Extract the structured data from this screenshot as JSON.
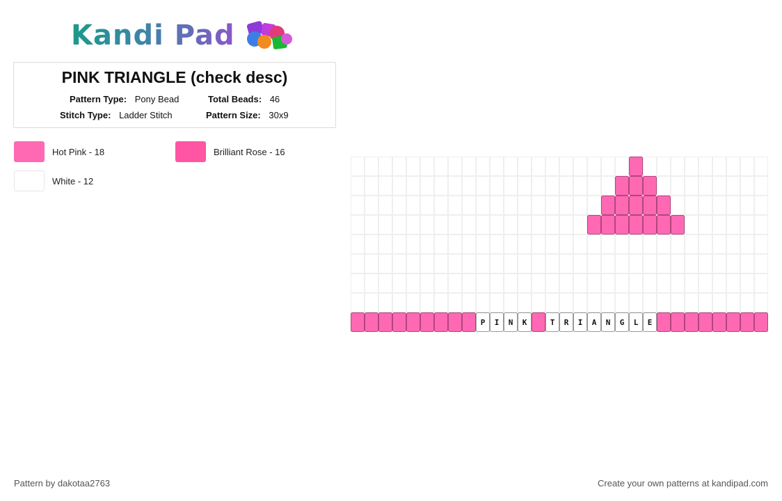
{
  "brand": {
    "logo_text": "Kandi Pad",
    "logo_icon": "bead-cluster-icon"
  },
  "pattern": {
    "title": "PINK TRIANGLE (check desc)",
    "pattern_type_label": "Pattern Type:",
    "pattern_type": "Pony Bead",
    "total_beads_label": "Total Beads:",
    "total_beads": "46",
    "stitch_type_label": "Stitch Type:",
    "stitch_type": "Ladder Stitch",
    "pattern_size_label": "Pattern Size:",
    "pattern_size": "30x9"
  },
  "colors": [
    {
      "name": "Hot Pink - 18",
      "hex": "#ff69b4"
    },
    {
      "name": "Brilliant Rose - 16",
      "hex": "#ff55a3"
    },
    {
      "name": "White - 12",
      "hex": "#ffffff"
    }
  ],
  "grid": {
    "columns": 30,
    "rows": 9,
    "triangle_rows": [
      {
        "row": 0,
        "from_col": 20,
        "to_col": 20
      },
      {
        "row": 1,
        "from_col": 19,
        "to_col": 21
      },
      {
        "row": 2,
        "from_col": 18,
        "to_col": 22
      },
      {
        "row": 3,
        "from_col": 17,
        "to_col": 23
      }
    ],
    "text_row": 8,
    "text_row_beads": [
      "",
      "",
      "",
      "",
      "",
      "",
      "",
      "",
      "",
      "P",
      "I",
      "N",
      "K",
      "",
      "T",
      "R",
      "I",
      "A",
      "N",
      "G",
      "L",
      "E",
      "",
      "",
      "",
      "",
      "",
      "",
      "",
      ""
    ],
    "text_row_white_cols": [
      9,
      10,
      11,
      12,
      14,
      15,
      16,
      17,
      18,
      19,
      20,
      21
    ]
  },
  "footer": {
    "left": "Pattern by dakotaa2763",
    "right": "Create your own patterns at kandipad.com"
  }
}
